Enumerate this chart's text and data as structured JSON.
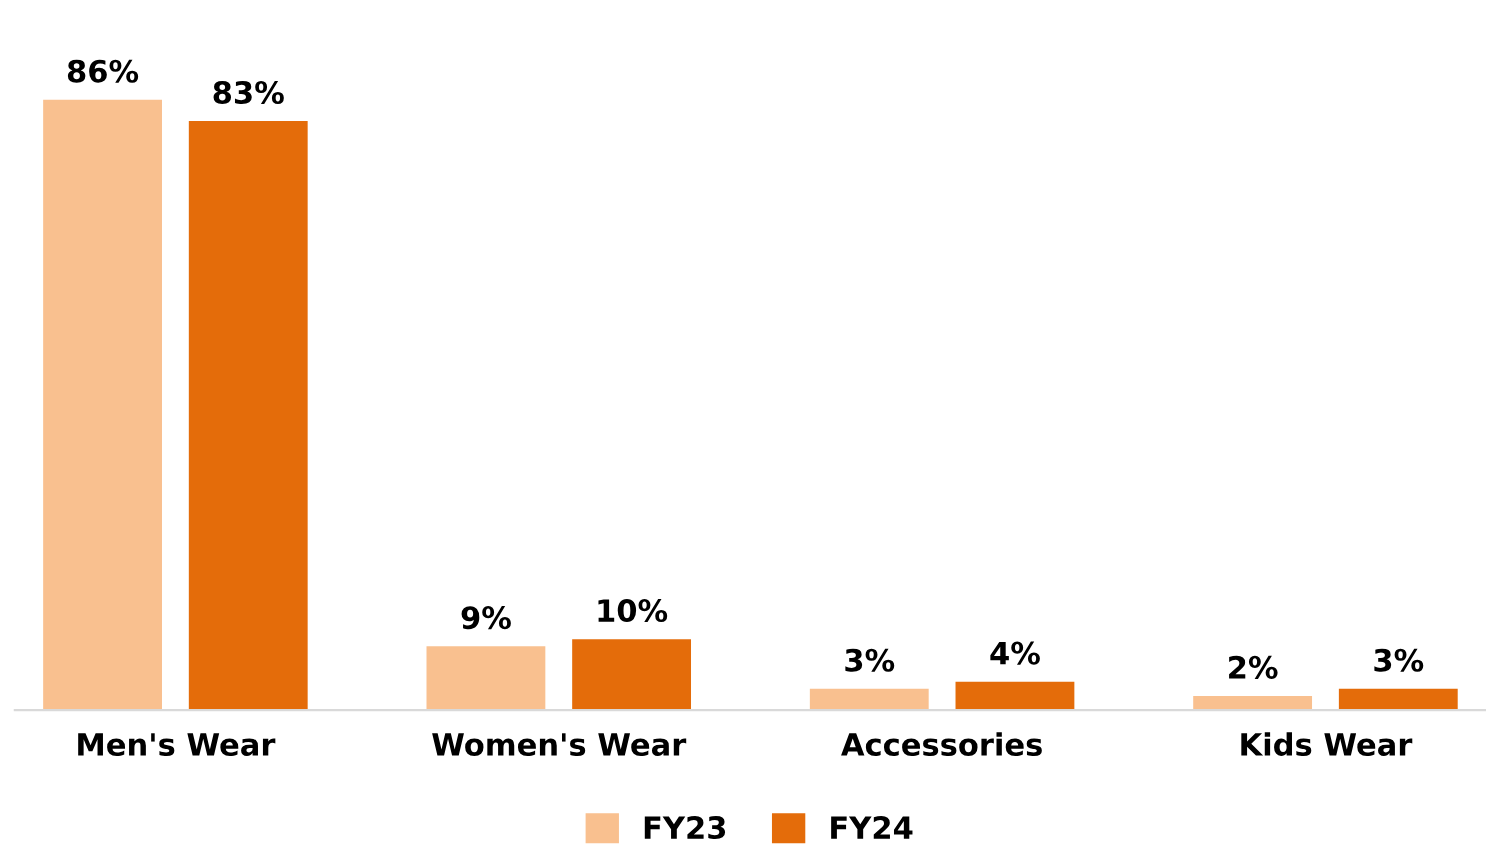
{
  "chart_data": {
    "type": "bar",
    "categories": [
      "Men's Wear",
      "Women's Wear",
      "Accessories",
      "Kids Wear"
    ],
    "series": [
      {
        "name": "FY23",
        "color": "#f9c08f",
        "values": [
          86,
          9,
          3,
          2
        ],
        "value_labels": [
          "86%",
          "9%",
          "3%",
          "2%"
        ]
      },
      {
        "name": "FY24",
        "color": "#e46c0a",
        "values": [
          83,
          10,
          4,
          3
        ],
        "value_labels": [
          "83%",
          "10%",
          "4%",
          "3%"
        ]
      }
    ],
    "legend": "bottom",
    "grid": false
  }
}
